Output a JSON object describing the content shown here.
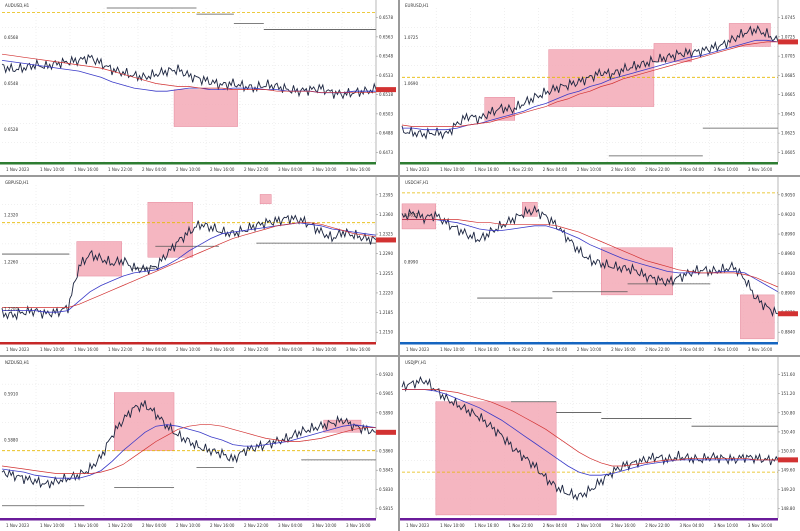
{
  "window": {
    "title": ""
  },
  "panels": [
    {
      "symbol": "AUDUSD,H1",
      "accent": "#2e7d32",
      "y_ticks": [
        "0.6578",
        "0.6563",
        "0.6548",
        "0.6533",
        "0.6518",
        "0.6503",
        "0.6488",
        "0.6473"
      ],
      "x_ticks": [
        "1 Nov 2023",
        "1 Nov 10:00",
        "1 Nov 16:00",
        "1 Nov 22:00",
        "2 Nov 04:00",
        "2 Nov 10:00",
        "2 Nov 16:00",
        "2 Nov 22:00",
        "3 Nov 04:00",
        "3 Nov 10:00",
        "3 Nov 16:00"
      ],
      "left_labels": [
        "0.6568",
        "0.6548",
        "0.6528"
      ]
    },
    {
      "symbol": "EURUSD,H1",
      "accent": "#2e7d32",
      "y_ticks": [
        "1.0745",
        "1.0725",
        "1.0705",
        "1.0685",
        "1.0665",
        "1.0645",
        "1.0625",
        "1.0605"
      ],
      "x_ticks": [
        "1 Nov 2023",
        "1 Nov 10:00",
        "1 Nov 16:00",
        "1 Nov 22:00",
        "2 Nov 04:00",
        "2 Nov 10:00",
        "2 Nov 16:00",
        "2 Nov 22:00",
        "3 Nov 04:00",
        "3 Nov 10:00",
        "3 Nov 16:00"
      ],
      "left_labels": [
        "1.0725",
        "1.0690"
      ]
    },
    {
      "symbol": "GBPUSD,H1",
      "accent": "#c62828",
      "y_ticks": [
        "1.2395",
        "1.2360",
        "1.2325",
        "1.2290",
        "1.2255",
        "1.2220",
        "1.2185",
        "1.2150"
      ],
      "x_ticks": [
        "1 Nov 2023",
        "1 Nov 10:00",
        "1 Nov 16:00",
        "1 Nov 22:00",
        "2 Nov 04:00",
        "2 Nov 10:00",
        "2 Nov 16:00",
        "2 Nov 22:00",
        "3 Nov 04:00",
        "3 Nov 10:00",
        "3 Nov 16:00"
      ],
      "left_labels": [
        "1.2320",
        "1.2260",
        "1.2200"
      ]
    },
    {
      "symbol": "USDCHF,H1",
      "accent": "#1565c0",
      "y_ticks": [
        "0.9050",
        "0.9020",
        "0.8990",
        "0.8960",
        "0.8930",
        "0.8900",
        "0.8870",
        "0.8840"
      ],
      "x_ticks": [
        "1 Nov 2023",
        "1 Nov 10:00",
        "1 Nov 16:00",
        "1 Nov 22:00",
        "2 Nov 04:00",
        "2 Nov 10:00",
        "2 Nov 16:00",
        "2 Nov 22:00",
        "3 Nov 04:00",
        "3 Nov 10:00",
        "3 Nov 16:00"
      ],
      "left_labels": [
        "0.9030",
        "0.8990"
      ]
    },
    {
      "symbol": "NZDUSD,H1",
      "accent": "#6a1b9a",
      "y_ticks": [
        "0.5920",
        "0.5905",
        "0.5890",
        "0.5875",
        "0.5860",
        "0.5845",
        "0.5830",
        "0.5815"
      ],
      "x_ticks": [
        "1 Nov 2023",
        "1 Nov 10:00",
        "1 Nov 16:00",
        "1 Nov 22:00",
        "2 Nov 04:00",
        "2 Nov 10:00",
        "2 Nov 16:00",
        "2 Nov 22:00",
        "3 Nov 04:00",
        "3 Nov 10:00",
        "3 Nov 16:00"
      ],
      "left_labels": [
        "0.5910",
        "0.5880"
      ]
    },
    {
      "symbol": "USDJPY,H1",
      "accent": "#6a1b9a",
      "y_ticks": [
        "151.60",
        "151.20",
        "150.80",
        "150.40",
        "150.00",
        "149.60",
        "149.20",
        "148.80"
      ],
      "x_ticks": [
        "1 Nov 2023",
        "1 Nov 10:00",
        "1 Nov 16:00",
        "1 Nov 22:00",
        "2 Nov 04:00",
        "2 Nov 10:00",
        "2 Nov 16:00",
        "2 Nov 22:00",
        "3 Nov 04:00",
        "3 Nov 10:00",
        "3 Nov 16:00"
      ],
      "left_labels": []
    }
  ],
  "chart_data": [
    {
      "type": "line",
      "title": "AUDUSD,H1",
      "series": [
        {
          "values": [
            62,
            60,
            61,
            63,
            62,
            64,
            65,
            66,
            68,
            64,
            60,
            58,
            56,
            55,
            57,
            59,
            60,
            56,
            54,
            52,
            50,
            51,
            49,
            48,
            50,
            49,
            47,
            46,
            47,
            48,
            45,
            44,
            45,
            46,
            47
          ]
        },
        {
          "values": [
            66,
            65,
            64,
            63,
            62,
            61,
            60,
            59,
            57,
            55,
            52,
            50,
            48,
            47,
            46,
            46,
            47,
            48,
            48,
            47,
            47,
            48,
            48,
            48,
            47,
            47,
            46,
            46,
            46,
            45,
            45,
            45,
            46,
            46,
            46
          ]
        },
        {
          "values": [
            70,
            69,
            68,
            67,
            66,
            65,
            64,
            63,
            62,
            61,
            59,
            57,
            55,
            53,
            51,
            50,
            49,
            49,
            48,
            48,
            48,
            47,
            47,
            47,
            47,
            46,
            46,
            46,
            46,
            45,
            45,
            45,
            45,
            45,
            45
          ]
        }
      ]
    },
    {
      "type": "line",
      "title": "EURUSD,H1",
      "series": [
        {
          "values": [
            20,
            19,
            18,
            19,
            18,
            25,
            30,
            28,
            32,
            35,
            34,
            38,
            42,
            45,
            48,
            50,
            52,
            55,
            58,
            57,
            60,
            62,
            64,
            66,
            68,
            70,
            71,
            72,
            74,
            76,
            80,
            84,
            86,
            83,
            78
          ]
        },
        {
          "values": [
            22,
            22,
            21,
            21,
            21,
            22,
            24,
            25,
            27,
            29,
            31,
            33,
            36,
            38,
            41,
            44,
            46,
            49,
            51,
            54,
            56,
            58,
            60,
            62,
            64,
            66,
            68,
            69,
            71,
            73,
            75,
            77,
            79,
            79,
            78
          ]
        },
        {
          "values": [
            24,
            23,
            23,
            23,
            23,
            23,
            24,
            25,
            26,
            28,
            30,
            32,
            34,
            36,
            39,
            41,
            44,
            46,
            49,
            51,
            54,
            56,
            58,
            60,
            62,
            64,
            66,
            68,
            70,
            72,
            74,
            76,
            77,
            78,
            78
          ]
        }
      ]
    },
    {
      "type": "line",
      "title": "GBPUSD,H1",
      "series": [
        {
          "values": [
            18,
            17,
            19,
            20,
            18,
            19,
            22,
            48,
            56,
            53,
            50,
            52,
            47,
            46,
            48,
            56,
            64,
            70,
            75,
            73,
            70,
            69,
            71,
            74,
            76,
            77,
            79,
            78,
            75,
            70,
            66,
            70,
            68,
            66,
            65
          ]
        },
        {
          "values": [
            20,
            20,
            20,
            20,
            19,
            19,
            20,
            26,
            32,
            36,
            39,
            42,
            44,
            45,
            46,
            49,
            53,
            58,
            62,
            66,
            69,
            70,
            71,
            72,
            73,
            74,
            75,
            76,
            75,
            74,
            72,
            71,
            70,
            69,
            68
          ]
        },
        {
          "values": [
            22,
            22,
            22,
            22,
            22,
            22,
            22,
            24,
            27,
            30,
            33,
            36,
            39,
            42,
            45,
            48,
            51,
            54,
            57,
            60,
            63,
            66,
            68,
            70,
            72,
            74,
            75,
            76,
            76,
            75,
            73,
            71,
            69,
            68,
            67
          ]
        }
      ]
    },
    {
      "type": "line",
      "title": "USDCHF,H1",
      "series": [
        {
          "values": [
            80,
            82,
            79,
            81,
            76,
            72,
            68,
            65,
            70,
            74,
            78,
            82,
            84,
            80,
            74,
            66,
            58,
            52,
            50,
            48,
            47,
            46,
            42,
            40,
            38,
            41,
            44,
            46,
            45,
            46,
            48,
            40,
            28,
            22,
            18
          ]
        },
        {
          "values": [
            78,
            78,
            78,
            78,
            77,
            76,
            74,
            72,
            71,
            71,
            72,
            73,
            74,
            74,
            72,
            69,
            66,
            62,
            59,
            56,
            53,
            51,
            49,
            47,
            45,
            44,
            44,
            44,
            44,
            45,
            45,
            44,
            40,
            36,
            32
          ]
        },
        {
          "values": [
            78,
            78,
            78,
            78,
            78,
            78,
            77,
            76,
            76,
            75,
            75,
            75,
            75,
            75,
            74,
            72,
            70,
            67,
            64,
            61,
            58,
            55,
            52,
            50,
            48,
            46,
            45,
            44,
            44,
            44,
            44,
            43,
            41,
            38,
            35
          ]
        }
      ]
    },
    {
      "type": "line",
      "title": "NZDUSD,H1",
      "series": [
        {
          "values": [
            30,
            28,
            26,
            24,
            22,
            24,
            26,
            28,
            32,
            40,
            54,
            64,
            72,
            74,
            68,
            60,
            54,
            50,
            46,
            44,
            42,
            38,
            44,
            46,
            48,
            50,
            52,
            56,
            58,
            60,
            62,
            64,
            60,
            58,
            56
          ]
        },
        {
          "values": [
            32,
            31,
            30,
            28,
            27,
            26,
            26,
            26,
            28,
            31,
            37,
            44,
            50,
            56,
            60,
            61,
            60,
            58,
            56,
            53,
            51,
            48,
            47,
            47,
            48,
            49,
            50,
            52,
            54,
            56,
            58,
            60,
            61,
            60,
            59
          ]
        },
        {
          "values": [
            34,
            33,
            32,
            31,
            30,
            29,
            29,
            29,
            29,
            30,
            32,
            35,
            40,
            45,
            50,
            54,
            58,
            60,
            61,
            61,
            60,
            58,
            56,
            54,
            52,
            51,
            50,
            50,
            51,
            52,
            54,
            56,
            58,
            59,
            59
          ]
        }
      ]
    },
    {
      "type": "line",
      "title": "USDJPY,H1",
      "series": [
        {
          "values": [
            86,
            88,
            90,
            84,
            78,
            74,
            70,
            66,
            60,
            54,
            46,
            40,
            34,
            26,
            20,
            16,
            14,
            18,
            24,
            30,
            34,
            36,
            38,
            40,
            38,
            40,
            39,
            38,
            40,
            39,
            38,
            40,
            39,
            38,
            38
          ]
        },
        {
          "values": [
            84,
            84,
            84,
            83,
            81,
            78,
            75,
            72,
            68,
            64,
            59,
            54,
            49,
            44,
            39,
            34,
            30,
            28,
            28,
            29,
            31,
            33,
            35,
            36,
            37,
            38,
            38,
            38,
            38,
            38,
            38,
            38,
            38,
            38,
            38
          ]
        },
        {
          "values": [
            84,
            84,
            84,
            84,
            83,
            82,
            80,
            78,
            76,
            73,
            70,
            66,
            62,
            58,
            53,
            48,
            43,
            39,
            36,
            34,
            34,
            35,
            36,
            37,
            38,
            38,
            39,
            39,
            39,
            39,
            39,
            39,
            38,
            38,
            38
          ]
        }
      ]
    }
  ],
  "colors": {
    "price": "#1c2540",
    "ma_fast": "#3a3ac8",
    "ma_slow": "#d23232",
    "zone_fill": "#f3a9b6",
    "zone_edge": "#e0788f",
    "grid": "#d8d8d8",
    "level": "#e6b800"
  }
}
